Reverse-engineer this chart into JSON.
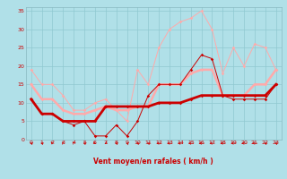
{
  "title": "",
  "xlabel": "Vent moyen/en rafales ( km/h )",
  "bg_color": "#b0e0e8",
  "grid_color": "#90c8d0",
  "xlim": [
    -0.5,
    23.5
  ],
  "ylim": [
    0,
    36
  ],
  "yticks": [
    0,
    5,
    10,
    15,
    20,
    25,
    30,
    35
  ],
  "xticks": [
    0,
    1,
    2,
    3,
    4,
    5,
    6,
    7,
    8,
    9,
    10,
    11,
    12,
    13,
    14,
    15,
    16,
    17,
    18,
    19,
    20,
    21,
    22,
    23
  ],
  "line_pink_thin_x": [
    0,
    1,
    2,
    3,
    4,
    5,
    6,
    7,
    8,
    9,
    10,
    11,
    12,
    13,
    14,
    15,
    16,
    17,
    18,
    19,
    20,
    21,
    22,
    23
  ],
  "line_pink_thin_y": [
    19,
    15,
    15,
    12,
    8,
    8,
    10,
    11,
    8,
    5,
    19,
    15,
    25,
    30,
    32,
    33,
    35,
    30,
    18,
    25,
    20,
    26,
    25,
    19
  ],
  "line_pink_thick_x": [
    0,
    1,
    2,
    3,
    4,
    5,
    6,
    7,
    8,
    9,
    10,
    11,
    12,
    13,
    14,
    15,
    16,
    17,
    18,
    19,
    20,
    21,
    22,
    23
  ],
  "line_pink_thick_y": [
    15,
    11,
    11,
    8,
    7,
    7,
    8,
    9,
    8,
    8,
    9,
    9,
    15,
    15,
    15,
    18,
    19,
    19,
    12,
    12,
    12,
    15,
    15,
    19
  ],
  "line_red_thin_x": [
    0,
    1,
    2,
    3,
    4,
    5,
    6,
    7,
    8,
    9,
    10,
    11,
    12,
    13,
    14,
    15,
    16,
    17,
    18,
    19,
    20,
    21,
    22,
    23
  ],
  "line_red_thin_y": [
    11,
    7,
    7,
    5,
    4,
    5,
    1,
    1,
    4,
    1,
    5,
    12,
    15,
    15,
    15,
    19,
    23,
    22,
    12,
    11,
    11,
    11,
    11,
    15
  ],
  "line_red_thick_x": [
    0,
    1,
    2,
    3,
    4,
    5,
    6,
    7,
    8,
    9,
    10,
    11,
    12,
    13,
    14,
    15,
    16,
    17,
    18,
    19,
    20,
    21,
    22,
    23
  ],
  "line_red_thick_y": [
    11,
    7,
    7,
    5,
    5,
    5,
    5,
    9,
    9,
    9,
    9,
    9,
    10,
    10,
    10,
    11,
    12,
    12,
    12,
    12,
    12,
    12,
    12,
    15
  ],
  "pink_color": "#ffaaaa",
  "red_color": "#cc0000",
  "arrow_angles_deg": [
    225,
    225,
    200,
    190,
    195,
    225,
    45,
    315,
    225,
    220,
    225,
    225,
    270,
    270,
    270,
    270,
    270,
    270,
    270,
    270,
    270,
    270,
    225,
    225
  ]
}
